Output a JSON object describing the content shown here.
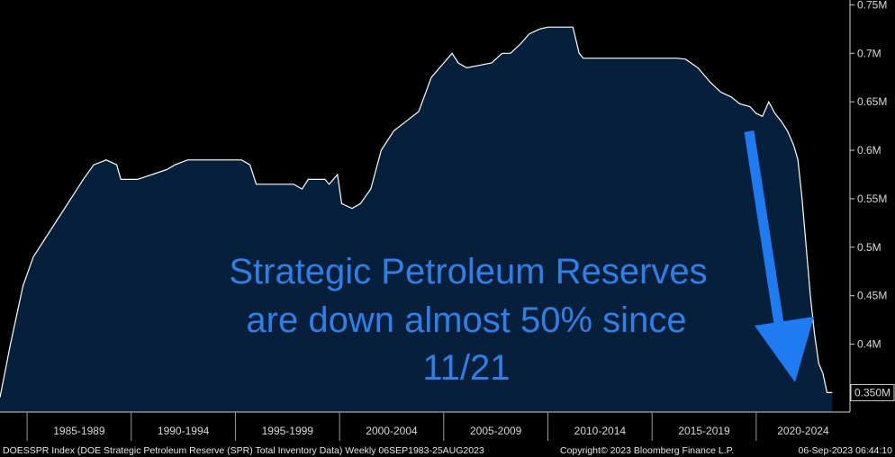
{
  "chart_data": {
    "type": "area",
    "x_unit": "year",
    "x": [
      1983.7,
      1984.2,
      1984.8,
      1985.3,
      1985.9,
      1986.5,
      1987.1,
      1987.7,
      1988.2,
      1988.8,
      1989.3,
      1989.5,
      1989.9,
      1990.3,
      1991.0,
      1991.7,
      1992.1,
      1992.7,
      1993.3,
      1994.0,
      1994.7,
      1995.3,
      1995.7,
      1996.0,
      1996.5,
      1997.1,
      1997.8,
      1998.2,
      1998.5,
      1998.9,
      1999.3,
      1999.5,
      1999.9,
      2000.1,
      2000.6,
      2001.0,
      2001.5,
      2002.0,
      2002.6,
      2003.2,
      2003.8,
      2004.4,
      2005.0,
      2005.4,
      2005.7,
      2006.1,
      2006.8,
      2007.3,
      2007.8,
      2008.2,
      2008.7,
      2009.1,
      2009.6,
      2010.0,
      2010.6,
      2011.2,
      2011.5,
      2011.7,
      2012.5,
      2013.5,
      2014.5,
      2015.5,
      2016.2,
      2016.6,
      2017.2,
      2017.8,
      2018.3,
      2018.8,
      2019.2,
      2019.7,
      2020.0,
      2020.3,
      2020.6,
      2020.9,
      2021.2,
      2021.5,
      2021.8,
      2022.0,
      2022.2,
      2022.4,
      2022.6,
      2022.8,
      2023.0,
      2023.2,
      2023.4,
      2023.65
    ],
    "y": [
      0.345,
      0.4,
      0.46,
      0.49,
      0.51,
      0.53,
      0.55,
      0.57,
      0.585,
      0.59,
      0.585,
      0.57,
      0.57,
      0.57,
      0.575,
      0.58,
      0.585,
      0.59,
      0.59,
      0.59,
      0.59,
      0.59,
      0.585,
      0.565,
      0.565,
      0.565,
      0.565,
      0.56,
      0.57,
      0.57,
      0.57,
      0.565,
      0.575,
      0.545,
      0.54,
      0.545,
      0.56,
      0.6,
      0.62,
      0.63,
      0.64,
      0.675,
      0.69,
      0.7,
      0.69,
      0.685,
      0.688,
      0.69,
      0.7,
      0.7,
      0.71,
      0.72,
      0.725,
      0.727,
      0.727,
      0.727,
      0.7,
      0.695,
      0.695,
      0.695,
      0.695,
      0.695,
      0.695,
      0.694,
      0.685,
      0.67,
      0.66,
      0.655,
      0.648,
      0.645,
      0.638,
      0.635,
      0.65,
      0.638,
      0.63,
      0.62,
      0.605,
      0.59,
      0.55,
      0.5,
      0.45,
      0.41,
      0.38,
      0.37,
      0.35,
      0.35
    ],
    "ylim": [
      0.33,
      0.755
    ],
    "yticks": [
      0.4,
      0.45,
      0.5,
      0.55,
      0.6,
      0.65,
      0.7,
      0.75
    ],
    "ytick_labels": [
      "0.4M",
      "0.45M",
      "0.5M",
      "0.55M",
      "0.6M",
      "0.65M",
      "0.7M",
      "0.75M"
    ],
    "last_value_label": "0.350M",
    "last_value": 0.35,
    "xlim": [
      1983.7,
      2024.5
    ],
    "xtick_positions": [
      1985.0,
      1990.0,
      1995.0,
      2000.0,
      2005.0,
      2010.0,
      2015.0,
      2020.0,
      2025.0
    ],
    "x_categories": [
      "1985-1989",
      "1990-1994",
      "1995-1999",
      "2000-2004",
      "2005-2009",
      "2010-2014",
      "2015-2019",
      "2020-2024"
    ],
    "grid": false,
    "fill_color": "#06203c",
    "line_color": "#ffffff"
  },
  "annotation": {
    "lines": [
      "Strategic Petroleum Reserves",
      "are down almost 50% since",
      "11/21"
    ],
    "color": "#2f7fe6",
    "arrow": "down-arrow-icon"
  },
  "footer": {
    "left": "DOESSPR Index (DOE Strategic Petroleum Reserve (SPR) Total Inventory Data)  Weekly 06SEP1983-25AUG2023",
    "center": "Copyright© 2023 Bloomberg Finance L.P.",
    "right": "06-Sep-2023 06:44:10"
  }
}
